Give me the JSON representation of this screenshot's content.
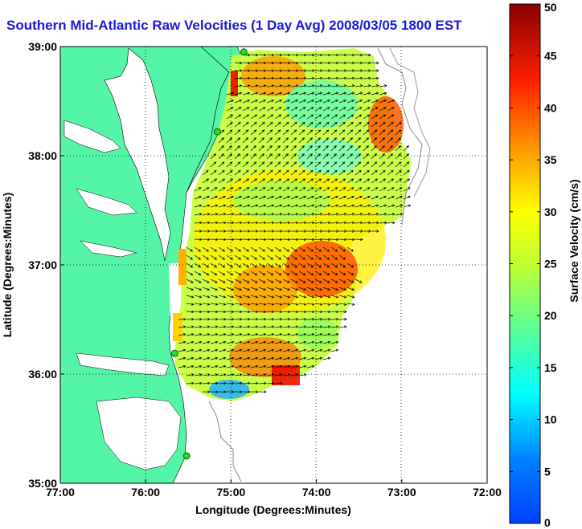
{
  "title": "Southern Mid-Atlantic Raw Velocities (1 Day Avg) 2008/03/05 1800 EST",
  "chart_data": {
    "type": "map",
    "x_axis": {
      "label": "Longitude (Degrees:Minutes)",
      "range": [
        -77,
        -72
      ],
      "ticks": [
        {
          "value": -77,
          "label": "77:00"
        },
        {
          "value": -76,
          "label": "76:00"
        },
        {
          "value": -75,
          "label": "75:00"
        },
        {
          "value": -74,
          "label": "74:00"
        },
        {
          "value": -73,
          "label": "73:00"
        },
        {
          "value": -72,
          "label": "72:00"
        }
      ]
    },
    "y_axis": {
      "label": "Latitude (Degrees:Minutes)",
      "range": [
        35,
        39
      ],
      "ticks": [
        {
          "value": 39,
          "label": "39:00"
        },
        {
          "value": 38,
          "label": "38:00"
        },
        {
          "value": 37,
          "label": "37:00"
        },
        {
          "value": 36,
          "label": "36:00"
        },
        {
          "value": 35,
          "label": "35:00"
        }
      ]
    },
    "grid": "dotted",
    "colorbar": {
      "label": "Surface Velocity (cm/s)",
      "range": [
        0,
        50
      ],
      "ticks": [
        0,
        5,
        10,
        15,
        20,
        25,
        30,
        35,
        40,
        45,
        50
      ],
      "colormap": "jet"
    },
    "land_color": "#55f5a8",
    "water_color": "#ffffff",
    "stations": [
      {
        "lon": -74.85,
        "lat": 38.95
      },
      {
        "lon": -75.16,
        "lat": 38.22
      },
      {
        "lon": -75.66,
        "lat": 36.19
      },
      {
        "lon": -75.52,
        "lat": 35.25
      }
    ]
  }
}
